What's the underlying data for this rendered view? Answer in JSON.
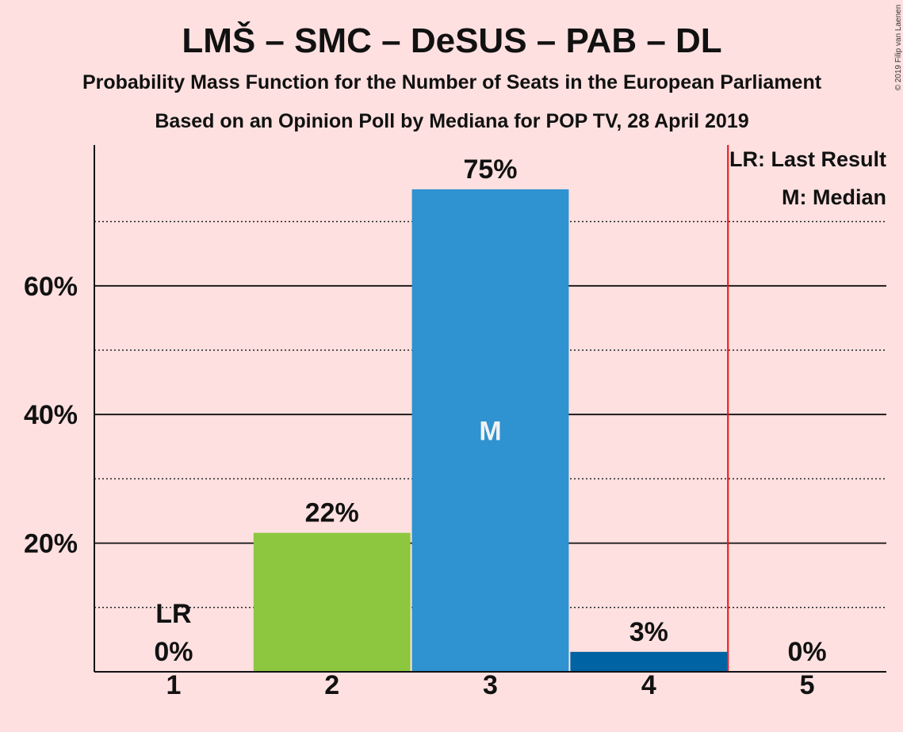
{
  "title": "LMŠ – SMC – DeSUS – PAB – DL",
  "subtitle1": "Probability Mass Function for the Number of Seats in the European Parliament",
  "subtitle2": "Based on an Opinion Poll by Mediana for POP TV, 28 April 2019",
  "copyright": "© 2019 Filip van Laenen",
  "legend": {
    "lr": "LR: Last Result",
    "median": "M: Median"
  },
  "chart_data": {
    "type": "bar",
    "categories": [
      "1",
      "2",
      "3",
      "4",
      "5"
    ],
    "values": [
      0,
      21.6,
      75,
      3.1,
      0
    ],
    "value_labels": [
      "0%",
      "22%",
      "75%",
      "3%",
      "0%"
    ],
    "colors": [
      "#8dc63f",
      "#8dc63f",
      "#2e93d0",
      "#0063a3",
      "#0063a3"
    ],
    "ylim": [
      0,
      82
    ],
    "yticks": [
      20,
      40,
      60
    ],
    "ytick_labels": [
      "20%",
      "40%",
      "60%"
    ],
    "minor_gridlines": [
      10,
      30,
      50,
      70
    ],
    "last_result_category": "1",
    "last_result_marker": "LR",
    "median_category": "3",
    "median_marker": "M",
    "majority_line_after_category": "4",
    "majority_line_color": "#e8131b",
    "grid": true,
    "legend_position": "top-right"
  }
}
